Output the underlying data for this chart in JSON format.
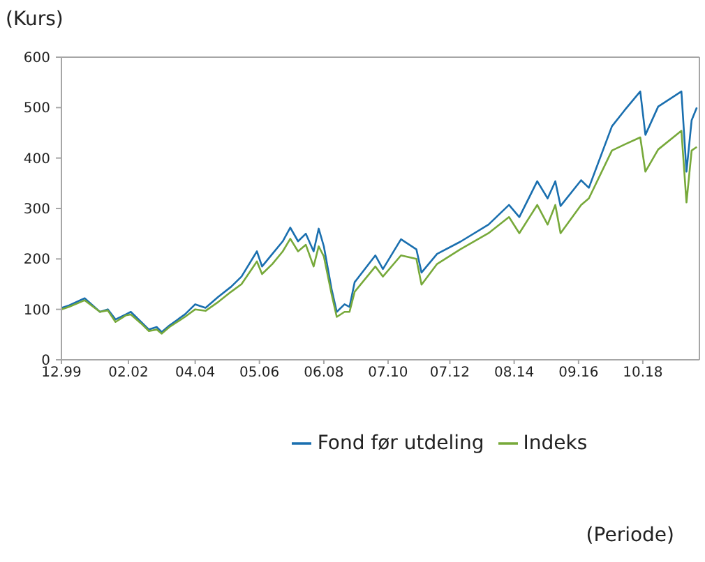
{
  "chart_data": {
    "type": "line",
    "ylabel": "(Kurs)",
    "annotations": [
      "(Periode)"
    ],
    "x": [
      "1999-12",
      "2000-03",
      "2000-09",
      "2001-03",
      "2001-06",
      "2001-09",
      "2002-01",
      "2002-03",
      "2002-07",
      "2002-10",
      "2003-01",
      "2003-03",
      "2003-06",
      "2003-12",
      "2004-04",
      "2004-08",
      "2005-01",
      "2005-06",
      "2005-10",
      "2006-04",
      "2006-06",
      "2006-10",
      "2007-02",
      "2007-05",
      "2007-08",
      "2007-11",
      "2008-02",
      "2008-04",
      "2008-06",
      "2008-09",
      "2008-11",
      "2009-02",
      "2009-04",
      "2009-06",
      "2010-02",
      "2010-05",
      "2010-12",
      "2011-06",
      "2011-08",
      "2012-02",
      "2012-11",
      "2013-10",
      "2014-06",
      "2014-10",
      "2015-05",
      "2015-09",
      "2015-12",
      "2016-02",
      "2016-10",
      "2017-01",
      "2017-10",
      "2018-03",
      "2018-09",
      "2018-11",
      "2019-04",
      "2020-01",
      "2020-03",
      "2020-05",
      "2020-07"
    ],
    "series": [
      {
        "name": "Fond før utdeling",
        "color": "#1a6faf",
        "values": [
          103,
          108,
          122,
          95,
          100,
          80,
          90,
          95,
          75,
          60,
          65,
          55,
          68,
          90,
          110,
          103,
          125,
          145,
          165,
          215,
          185,
          210,
          235,
          262,
          235,
          250,
          215,
          260,
          225,
          140,
          95,
          110,
          105,
          154,
          207,
          180,
          239,
          219,
          173,
          210,
          234,
          268,
          307,
          283,
          354,
          320,
          354,
          305,
          356,
          341,
          463,
          495,
          532,
          446,
          502,
          532,
          373,
          475,
          500
        ]
      },
      {
        "name": "Indeks",
        "color": "#77a93a",
        "values": [
          100,
          105,
          118,
          95,
          98,
          75,
          88,
          90,
          72,
          57,
          60,
          52,
          65,
          85,
          100,
          97,
          115,
          135,
          150,
          195,
          170,
          190,
          215,
          240,
          215,
          228,
          185,
          225,
          205,
          130,
          85,
          95,
          95,
          135,
          185,
          165,
          207,
          200,
          149,
          190,
          219,
          251,
          283,
          251,
          307,
          268,
          307,
          251,
          307,
          320,
          415,
          427,
          441,
          373,
          417,
          454,
          312,
          415,
          422
        ]
      }
    ],
    "xlim": [
      "1999-12",
      "2020-08"
    ],
    "xticks": [
      {
        "value": "1999-12",
        "label": "12.99"
      },
      {
        "value": "2002-02",
        "label": "02.02"
      },
      {
        "value": "2004-04",
        "label": "04.04"
      },
      {
        "value": "2006-05",
        "label": "05.06"
      },
      {
        "value": "2008-06",
        "label": "06.08"
      },
      {
        "value": "2010-07",
        "label": "07.10"
      },
      {
        "value": "2012-07",
        "label": "07.12"
      },
      {
        "value": "2014-08",
        "label": "08.14"
      },
      {
        "value": "2016-09",
        "label": "09.16"
      },
      {
        "value": "2018-10",
        "label": "10.18"
      }
    ],
    "ylim": [
      0,
      600
    ],
    "yticks": [
      0,
      100,
      200,
      300,
      400,
      500,
      600
    ],
    "legend": "bottom",
    "grid": false,
    "marker": "none",
    "line_style": "solid"
  }
}
